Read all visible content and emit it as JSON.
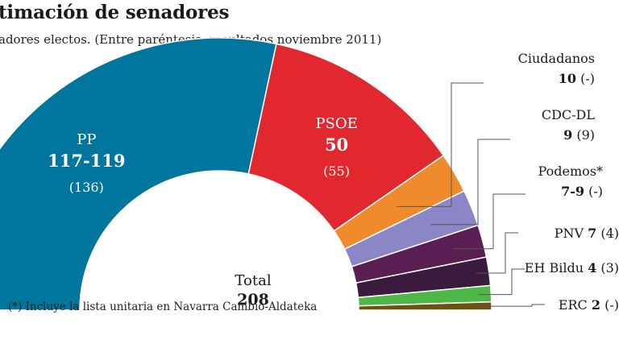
{
  "title": "timación de senadores",
  "subtitle": "adores electos. (Entre paréntesis, resultados noviembre 2011)",
  "footnote": "(*) Incluye la lista unitaria en Navarra Cambio-Aldateka",
  "chart_data": {
    "type": "pie",
    "subtype": "hemicycle",
    "total_label": "Total",
    "total_value": "208",
    "series": [
      {
        "name": "PP",
        "value": 118,
        "estimate": "117-119",
        "previous": "(136)",
        "color": "#00769e"
      },
      {
        "name": "PSOE",
        "value": 50,
        "estimate": "50",
        "previous": "(55)",
        "color": "#e0282e"
      },
      {
        "name": "Ciudadanos",
        "value": 10,
        "estimate": "10",
        "previous": "(-)",
        "color": "#f08b2d"
      },
      {
        "name": "CDC-DL",
        "value": 9,
        "estimate": "9",
        "previous": "(9)",
        "color": "#8b86c6"
      },
      {
        "name": "Podemos*",
        "value": 8,
        "estimate": "7-9",
        "previous": "(-)",
        "color": "#5a1f52"
      },
      {
        "name": "PNV",
        "value": 7,
        "estimate": "7",
        "previous": "(4)",
        "color": "#3a1a3d"
      },
      {
        "name": "EH Bildu",
        "value": 4,
        "estimate": "4",
        "previous": "(3)",
        "color": "#4fb748"
      },
      {
        "name": "ERC",
        "value": 2,
        "estimate": "2",
        "previous": "(-)",
        "color": "#6a5310"
      }
    ]
  }
}
